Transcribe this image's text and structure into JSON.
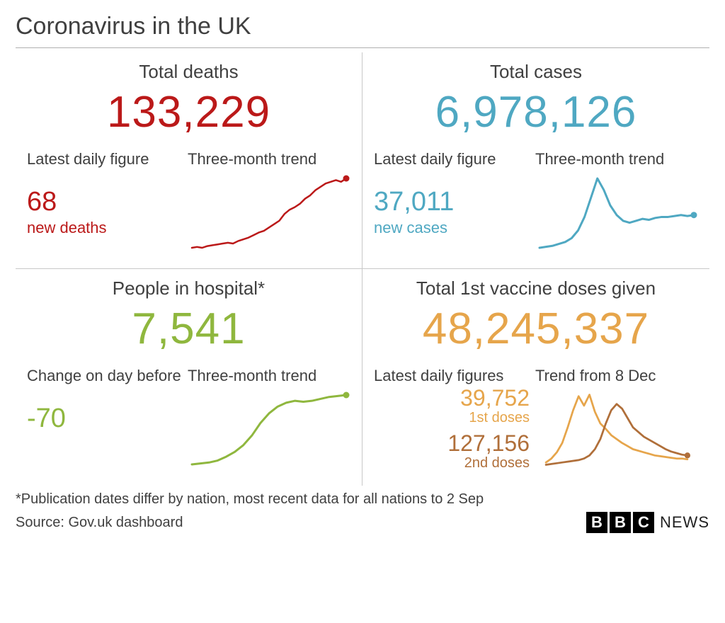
{
  "title": "Coronavirus in the UK",
  "colors": {
    "deaths": "#bb1919",
    "cases": "#4fa8c2",
    "hospital": "#8fb73e",
    "vacc1": "#e6a54b",
    "vacc2": "#b06f3a",
    "text": "#404040",
    "divider": "#c8c8c8",
    "background": "#ffffff"
  },
  "typography": {
    "title_fontsize": 34,
    "panel_label_fontsize": 26,
    "bignum_fontsize": 62,
    "sublabel_fontsize": 22,
    "subval_fontsize": 38
  },
  "panels": {
    "deaths": {
      "label": "Total deaths",
      "total": "133,229",
      "daily_label": "Latest daily figure",
      "daily_value": "68",
      "daily_caption": "new deaths",
      "trend_label": "Three-month trend",
      "spark": {
        "color": "#bb1919",
        "stroke_width": 2.5,
        "end_marker": true,
        "points": [
          10,
          11,
          10,
          12,
          13,
          14,
          15,
          16,
          15,
          18,
          20,
          22,
          25,
          28,
          30,
          34,
          38,
          42,
          50,
          55,
          58,
          62,
          68,
          72,
          78,
          82,
          86,
          88,
          90,
          88,
          92
        ]
      }
    },
    "cases": {
      "label": "Total cases",
      "total": "6,978,126",
      "daily_label": "Latest daily figure",
      "daily_value": "37,011",
      "daily_caption": "new cases",
      "trend_label": "Three-month trend",
      "spark": {
        "color": "#4fa8c2",
        "stroke_width": 3,
        "end_marker": true,
        "points": [
          18,
          19,
          20,
          22,
          24,
          28,
          36,
          50,
          70,
          90,
          78,
          62,
          52,
          46,
          44,
          46,
          48,
          47,
          49,
          50,
          50,
          51,
          52,
          51,
          52
        ]
      }
    },
    "hospital": {
      "label": "People in hospital*",
      "total": "7,541",
      "daily_label": "Change on day before",
      "daily_value": "-70",
      "daily_caption": "",
      "trend_label": "Three-month trend",
      "spark": {
        "color": "#8fb73e",
        "stroke_width": 3,
        "end_marker": true,
        "points": [
          12,
          13,
          14,
          16,
          20,
          25,
          32,
          42,
          55,
          65,
          72,
          76,
          78,
          77,
          78,
          80,
          82,
          83,
          84
        ]
      }
    },
    "vaccines": {
      "label": "Total 1st vaccine doses given",
      "total": "48,245,337",
      "daily_label": "Latest daily figures",
      "trend_label": "Trend from 8 Dec",
      "dose1": {
        "value": "39,752",
        "caption": "1st doses",
        "color": "#e6a54b"
      },
      "dose2": {
        "value": "127,156",
        "caption": "2nd doses",
        "color": "#b06f3a"
      },
      "spark1": {
        "color": "#e6a54b",
        "stroke_width": 3,
        "end_marker": false,
        "points": [
          5,
          10,
          18,
          30,
          50,
          72,
          90,
          78,
          92,
          70,
          55,
          48,
          40,
          35,
          30,
          26,
          22,
          20,
          18,
          16,
          14,
          13,
          12,
          11,
          10,
          10,
          9
        ]
      },
      "spark2": {
        "color": "#b06f3a",
        "stroke_width": 3,
        "end_marker": true,
        "points": [
          2,
          3,
          4,
          5,
          6,
          7,
          8,
          10,
          14,
          22,
          35,
          55,
          72,
          80,
          74,
          62,
          50,
          44,
          38,
          34,
          30,
          26,
          22,
          19,
          17,
          15,
          14
        ]
      }
    }
  },
  "footer": {
    "note": "*Publication dates differ by nation, most recent data for all nations to 2 Sep",
    "source": "Source: Gov.uk dashboard",
    "logo_letters": [
      "B",
      "B",
      "C"
    ],
    "logo_text": "NEWS"
  }
}
